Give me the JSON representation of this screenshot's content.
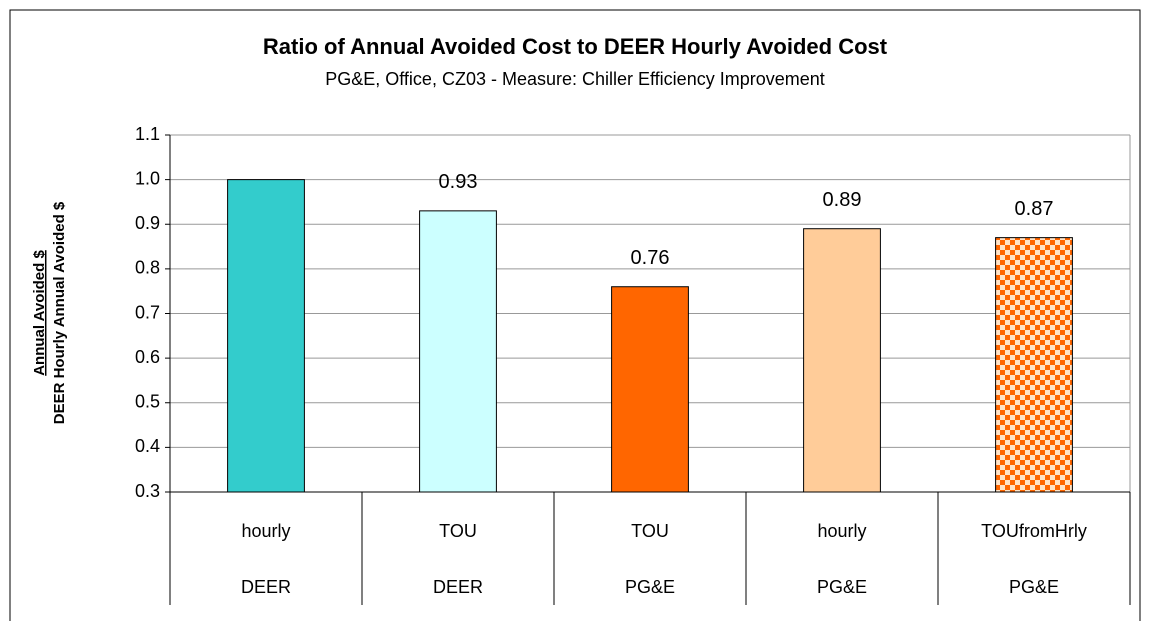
{
  "chart_data": {
    "type": "bar",
    "title": "Ratio of Annual Avoided Cost to DEER Hourly Avoided Cost",
    "subtitle": "PG&E, Office, CZ03 - Measure: Chiller Efficiency Improvement",
    "y_label": [
      "Annual Avoided $",
      "DEER Hourly Annual Avoided $"
    ],
    "categories": [
      "hourly",
      "TOU",
      "TOU",
      "hourly",
      "TOUfromHrly"
    ],
    "groups": [
      "DEER",
      "DEER",
      "PG&E",
      "PG&E",
      "PG&E"
    ],
    "values": [
      1.0,
      0.93,
      0.76,
      0.89,
      0.87
    ],
    "value_labels": [
      null,
      "0.93",
      "0.76",
      "0.89",
      "0.87"
    ],
    "colors": [
      "#33CCCC",
      "#CCFFFF",
      "#FF6600",
      "#FFCC99",
      "#FF6600"
    ],
    "patterns": [
      null,
      null,
      null,
      null,
      {
        "type": "checkerboard",
        "colors": [
          "#FF6600",
          "#FFE4C8"
        ]
      }
    ],
    "ylim": [
      0.3,
      1.1
    ],
    "yticks": [
      0.3,
      0.4,
      0.5,
      0.6,
      0.7,
      0.8,
      0.9,
      {
        "value": 1.0,
        "label": "1.0"
      },
      1.1
    ],
    "grid": true
  }
}
